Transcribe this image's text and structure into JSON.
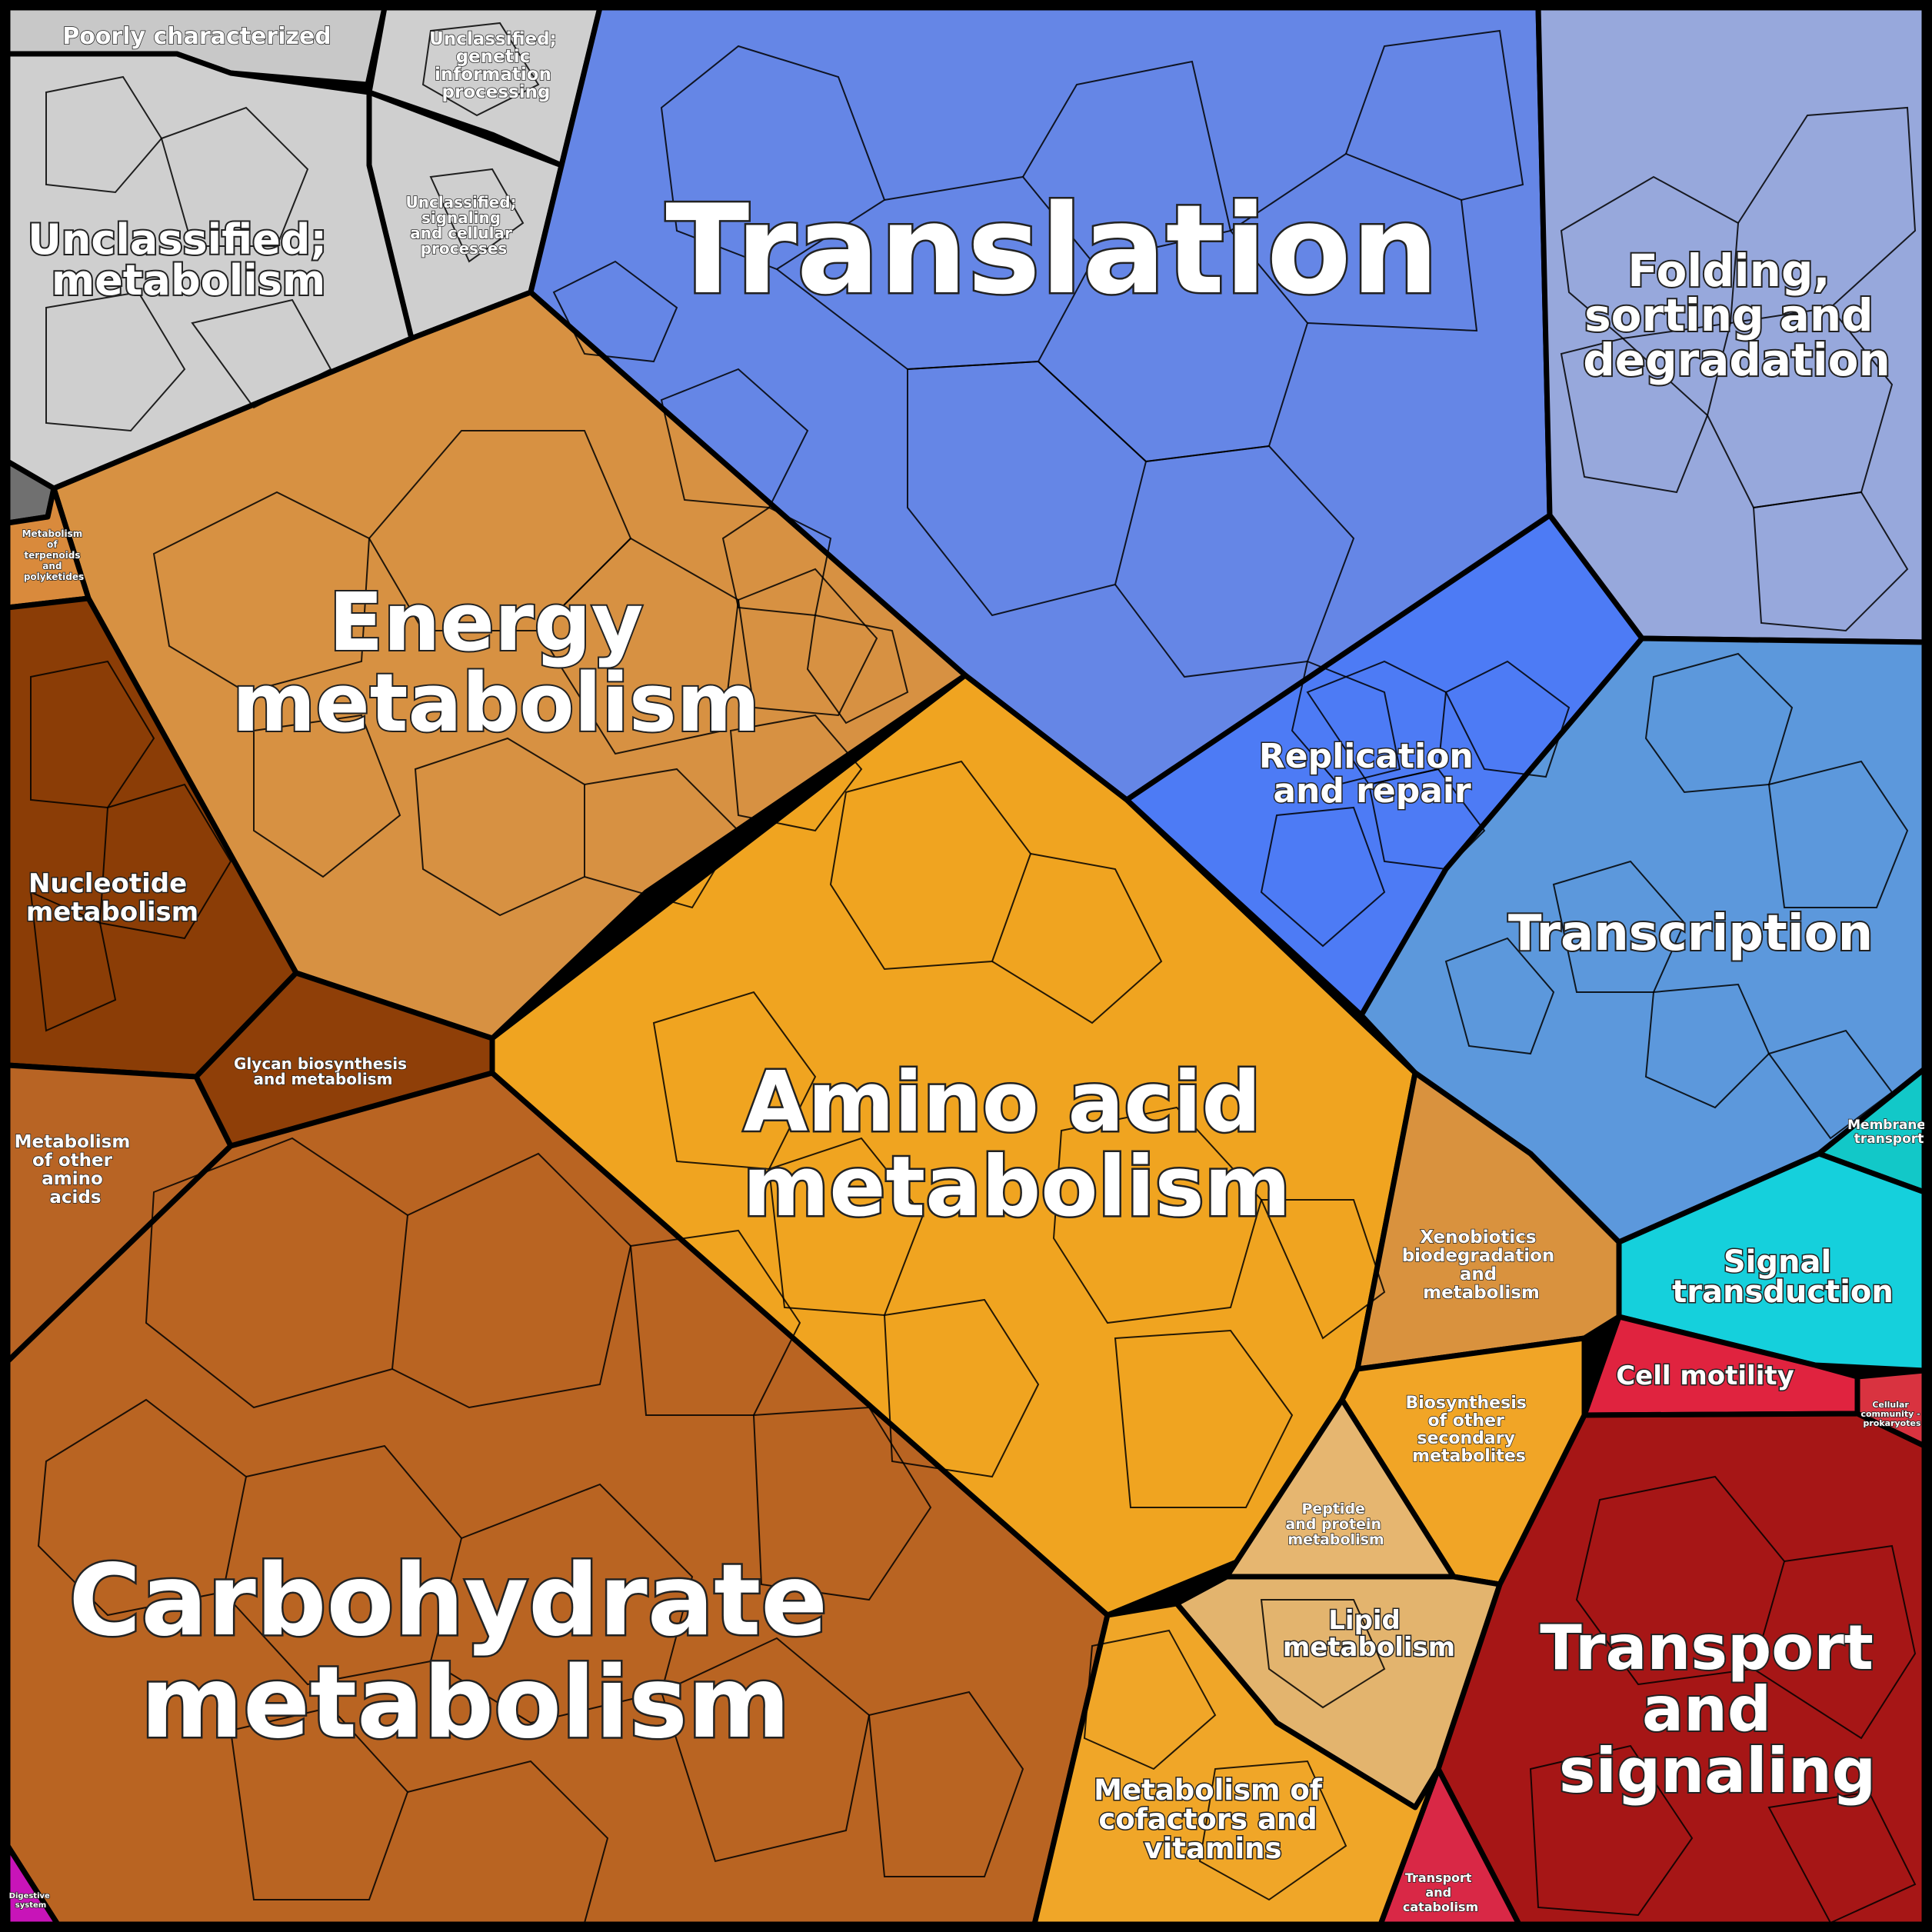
{
  "colors": {
    "unclassified": "#cfcfcf",
    "poorly": "#c8c8c8",
    "translation": "#6586e6",
    "folding": "#97a8dc",
    "replication": "#4d7bf5",
    "transcription": "#5c98dc",
    "membrane": "#12c8c8",
    "signal": "#15d0dc",
    "cell_motility": "#e0233f",
    "cellular_community": "#d93340",
    "transport_signaling": "#a61616",
    "transport_catabolism": "#d92846",
    "energy": "#d79142",
    "terpenoids": "#d98a3c",
    "nucleotide": "#8b3d06",
    "glycan": "#8f3f08",
    "other_amino": "#b86424",
    "carbohydrate": "#b96422",
    "amino_acid": "#f0a420",
    "xenobiotics": "#d9923e",
    "secondary": "#f1a526",
    "peptide": "#e6b670",
    "lipid": "#e3b46e",
    "cofactors": "#f0a628",
    "digestive": "#c814b8",
    "small_grey": "#707070"
  },
  "labels": {
    "translation": "Translation",
    "folding": [
      "Folding,",
      "sorting and",
      "degradation"
    ],
    "replication": [
      "Replication",
      "and repair"
    ],
    "transcription": "Transcription",
    "membrane": [
      "Membrane",
      "transport"
    ],
    "signal": [
      "Signal",
      "transduction"
    ],
    "cell_motility": "Cell motility",
    "cellular_community": [
      "Cellular",
      "community -",
      "prokaryotes"
    ],
    "transport_signaling": [
      "Transport",
      "and",
      "signaling"
    ],
    "transport_catabolism": [
      "Transport",
      "and",
      "catabolism"
    ],
    "energy": [
      "Energy",
      "metabolism"
    ],
    "terpenoids": [
      "Metabolism",
      "of",
      "terpenoids",
      "and",
      "polyketides"
    ],
    "nucleotide": [
      "Nucleotide",
      "metabolism"
    ],
    "glycan": [
      "Glycan biosynthesis",
      "and metabolism"
    ],
    "other_amino": [
      "Metabolism",
      "of other",
      "amino",
      "acids"
    ],
    "carbohydrate": [
      "Carbohydrate",
      "metabolism"
    ],
    "amino_acid": [
      "Amino acid",
      "metabolism"
    ],
    "xenobiotics": [
      "Xenobiotics",
      "biodegradation",
      "and",
      "metabolism"
    ],
    "secondary": [
      "Biosynthesis",
      "of other",
      "secondary",
      "metabolites"
    ],
    "peptide": [
      "Peptide",
      "and protein",
      "metabolism"
    ],
    "lipid": [
      "Lipid",
      "metabolism"
    ],
    "cofactors": [
      "Metabolism of",
      "cofactors and",
      "vitamins"
    ],
    "digestive": [
      "Digestive",
      "system"
    ],
    "poorly": "Poorly characterized",
    "unc_genetic": [
      "Unclassified;",
      "genetic",
      "information",
      "processing"
    ],
    "unc_signaling": [
      "Unclassified;",
      "signaling",
      "and cellular",
      "processes"
    ],
    "unc_metabolism": [
      "Unclassified;",
      "metabolism"
    ]
  }
}
